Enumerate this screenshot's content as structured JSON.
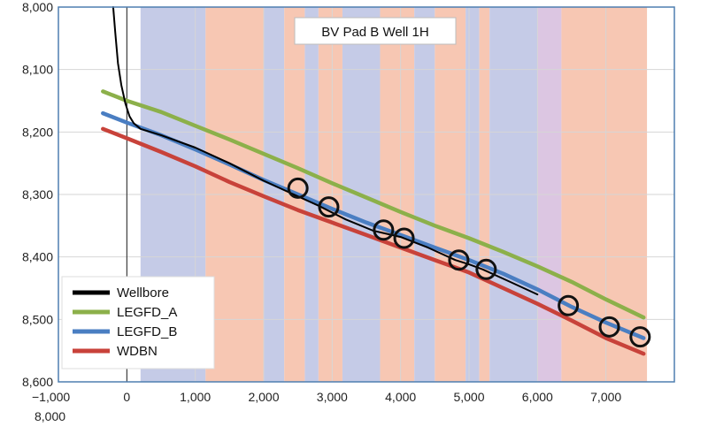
{
  "chart_data": {
    "type": "line",
    "title": "BV Pad B Well 1H",
    "xlabel": "",
    "ylabel": "",
    "xlim": [
      -1000,
      8000
    ],
    "ylim": [
      8000,
      8600
    ],
    "y_inverted": true,
    "grid": true,
    "legend_position": "bottom-left",
    "x_ticks": [
      -1000,
      0,
      1000,
      2000,
      3000,
      4000,
      5000,
      6000,
      7000,
      8000
    ],
    "x_tick_labels": [
      "−1,000",
      "0",
      "1,000",
      "2,000",
      "3,000",
      "4,000",
      "5,000",
      "6,000",
      "7,000",
      "8,000"
    ],
    "y_ticks": [
      8000,
      8100,
      8200,
      8300,
      8400,
      8500,
      8600
    ],
    "y_tick_labels": [
      "8,000",
      "8,100",
      "8,200",
      "8,300",
      "8,400",
      "8,500",
      "8,600"
    ],
    "bands": [
      {
        "x0": 200,
        "x1": 1150,
        "zone": "blue"
      },
      {
        "x0": 1150,
        "x1": 2000,
        "zone": "salmon"
      },
      {
        "x0": 2000,
        "x1": 2300,
        "zone": "blue"
      },
      {
        "x0": 2300,
        "x1": 2600,
        "zone": "salmon"
      },
      {
        "x0": 2600,
        "x1": 2800,
        "zone": "blue"
      },
      {
        "x0": 2800,
        "x1": 3150,
        "zone": "salmon"
      },
      {
        "x0": 3150,
        "x1": 3700,
        "zone": "blue"
      },
      {
        "x0": 3700,
        "x1": 4200,
        "zone": "salmon"
      },
      {
        "x0": 4200,
        "x1": 4500,
        "zone": "blue"
      },
      {
        "x0": 4500,
        "x1": 4950,
        "zone": "salmon"
      },
      {
        "x0": 4950,
        "x1": 5150,
        "zone": "blue"
      },
      {
        "x0": 5150,
        "x1": 5300,
        "zone": "salmon"
      },
      {
        "x0": 5300,
        "x1": 6000,
        "zone": "blue"
      },
      {
        "x0": 6000,
        "x1": 6350,
        "zone": "purple"
      },
      {
        "x0": 6350,
        "x1": 7600,
        "zone": "salmon"
      }
    ],
    "series": [
      {
        "name": "Wellbore",
        "color": "#000000",
        "x": [
          -200,
          -170,
          -130,
          -80,
          -20,
          40,
          100,
          200,
          500,
          1000,
          1500,
          2000,
          2400,
          2800,
          3200,
          3600,
          4000,
          4400,
          4800,
          5000,
          5200,
          5600,
          6000
        ],
        "y": [
          8000,
          8040,
          8090,
          8125,
          8155,
          8175,
          8186,
          8195,
          8205,
          8225,
          8250,
          8278,
          8298,
          8318,
          8340,
          8358,
          8368,
          8385,
          8405,
          8412,
          8420,
          8440,
          8460
        ]
      },
      {
        "name": "LEGFD_A",
        "color": "#8cb04a",
        "x": [
          -350,
          0,
          500,
          1000,
          1500,
          2000,
          2500,
          3000,
          3500,
          4000,
          4500,
          5000,
          5500,
          6000,
          6500,
          7000,
          7550
        ],
        "y": [
          8135,
          8150,
          8168,
          8190,
          8212,
          8235,
          8258,
          8282,
          8305,
          8328,
          8350,
          8370,
          8392,
          8415,
          8440,
          8468,
          8497
        ]
      },
      {
        "name": "LEGFD_B",
        "color": "#4a7ec2",
        "x": [
          -350,
          0,
          500,
          1000,
          1500,
          2000,
          2500,
          3000,
          3500,
          4000,
          4500,
          5000,
          5500,
          6000,
          6500,
          7000,
          7550
        ],
        "y": [
          8170,
          8185,
          8205,
          8228,
          8252,
          8277,
          8300,
          8323,
          8345,
          8365,
          8385,
          8405,
          8427,
          8452,
          8480,
          8505,
          8530
        ]
      },
      {
        "name": "WDBN",
        "color": "#c8423a",
        "x": [
          -350,
          0,
          500,
          1000,
          1500,
          2000,
          2500,
          3000,
          3500,
          4000,
          4500,
          5000,
          5500,
          6000,
          6500,
          7000,
          7550
        ],
        "y": [
          8195,
          8210,
          8232,
          8255,
          8280,
          8303,
          8325,
          8345,
          8365,
          8385,
          8405,
          8425,
          8450,
          8475,
          8502,
          8530,
          8555
        ]
      }
    ],
    "markers": [
      {
        "x": 2500,
        "y": 8290
      },
      {
        "x": 2950,
        "y": 8320
      },
      {
        "x": 3750,
        "y": 8357
      },
      {
        "x": 4050,
        "y": 8370
      },
      {
        "x": 4850,
        "y": 8405
      },
      {
        "x": 5250,
        "y": 8420
      },
      {
        "x": 6450,
        "y": 8478
      },
      {
        "x": 7050,
        "y": 8512
      },
      {
        "x": 7500,
        "y": 8528
      }
    ]
  },
  "colors": {
    "background": "#ffffff",
    "band_blue": "#c5cbe7",
    "band_salmon": "#f7c7b3",
    "band_purple": "#dcc6e2",
    "gridline": "#d6d6d6",
    "frame": "#4f7fb0",
    "zero_line": "#222222"
  }
}
